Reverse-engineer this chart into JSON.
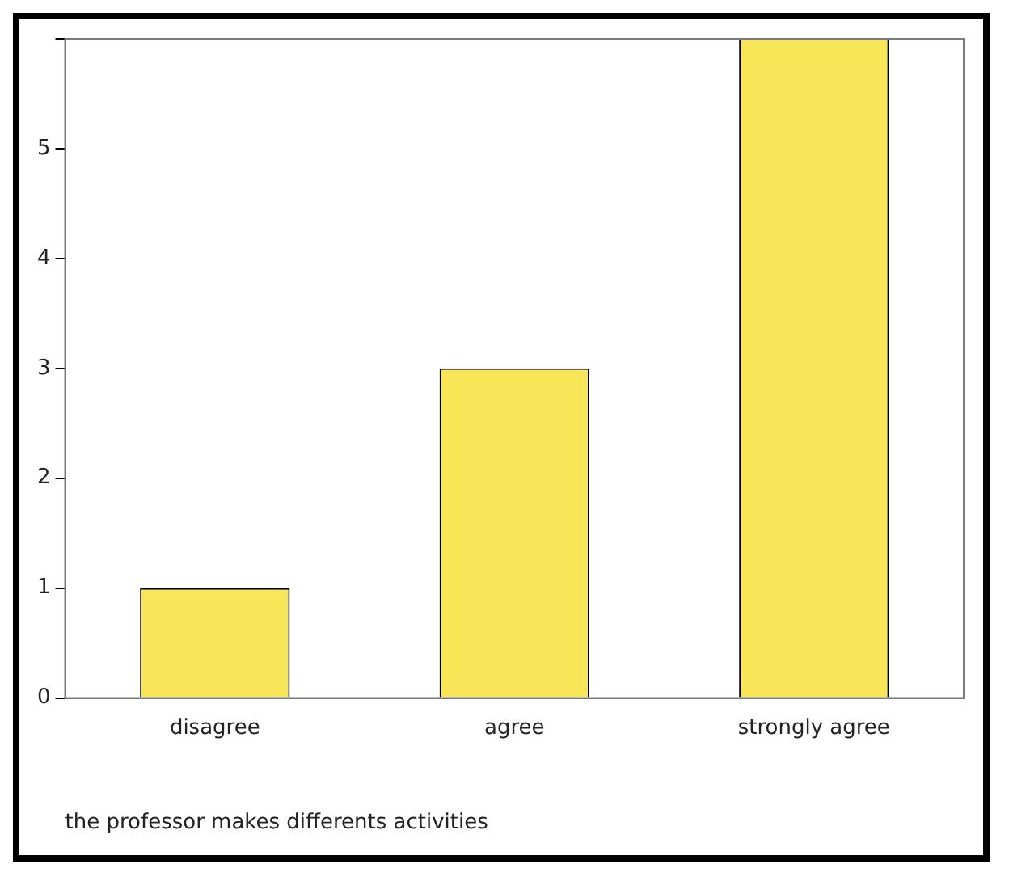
{
  "chart_data": {
    "type": "bar",
    "xlabel": "the professor makes differents activities",
    "categories": [
      "disagree",
      "agree",
      "strongly agree"
    ],
    "values": [
      1,
      3,
      6
    ],
    "color": "#f9e658",
    "ylim": [
      0,
      6
    ],
    "yticks": [
      0,
      1,
      2,
      3,
      4,
      5,
      {
        "value": 6,
        "label": null
      }
    ],
    "grid": false,
    "legend": false
  }
}
